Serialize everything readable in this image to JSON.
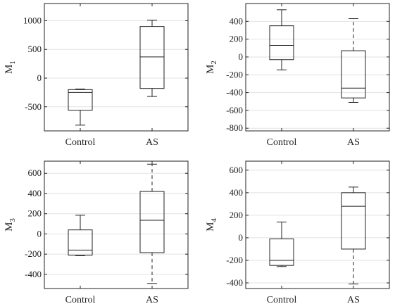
{
  "chart_data": [
    {
      "type": "boxplot",
      "ylabel_main": "M",
      "ylabel_sub": "1",
      "categories": [
        "Control",
        "AS"
      ],
      "ylim": [
        -920,
        1300
      ],
      "yticks": [
        -500,
        0,
        500,
        1000
      ],
      "ytick_labels": [
        "-500",
        "0",
        "500",
        "1000"
      ],
      "grid": true,
      "boxes": [
        {
          "category": "Control",
          "whisker_low": -820,
          "q1": -560,
          "median": -250,
          "q3": -200,
          "whisker_high": -190,
          "whisker_style_high": "solid",
          "whisker_style_low": "solid"
        },
        {
          "category": "AS",
          "whisker_low": -320,
          "q1": -180,
          "median": 370,
          "q3": 900,
          "whisker_high": 1010,
          "whisker_style_high": "solid",
          "whisker_style_low": "solid"
        }
      ]
    },
    {
      "type": "boxplot",
      "ylabel_main": "M",
      "ylabel_sub": "2",
      "categories": [
        "Control",
        "AS"
      ],
      "ylim": [
        -830,
        600
      ],
      "yticks": [
        -800,
        -600,
        -400,
        -200,
        0,
        200,
        400
      ],
      "ytick_labels": [
        "-800",
        "-600",
        "-400",
        "-200",
        "0",
        "200",
        "400"
      ],
      "grid": true,
      "boxes": [
        {
          "category": "Control",
          "whisker_low": -145,
          "q1": -30,
          "median": 130,
          "q3": 350,
          "whisker_high": 530,
          "whisker_style_high": "solid",
          "whisker_style_low": "solid"
        },
        {
          "category": "AS",
          "whisker_low": -510,
          "q1": -460,
          "median": -350,
          "q3": 70,
          "whisker_high": 430,
          "whisker_style_high": "dashed",
          "whisker_style_low": "solid"
        }
      ]
    },
    {
      "type": "boxplot",
      "ylabel_main": "M",
      "ylabel_sub": "3",
      "categories": [
        "Control",
        "AS"
      ],
      "ylim": [
        -540,
        720
      ],
      "yticks": [
        -400,
        -200,
        0,
        200,
        400,
        600
      ],
      "ytick_labels": [
        "-400",
        "-200",
        "0",
        "200",
        "400",
        "600"
      ],
      "grid": true,
      "boxes": [
        {
          "category": "Control",
          "whisker_low": -215,
          "q1": -210,
          "median": -160,
          "q3": 40,
          "whisker_high": 185,
          "whisker_style_high": "solid",
          "whisker_style_low": "solid"
        },
        {
          "category": "AS",
          "whisker_low": -490,
          "q1": -185,
          "median": 135,
          "q3": 420,
          "whisker_high": 690,
          "whisker_style_high": "dashed",
          "whisker_style_low": "dashed"
        }
      ]
    },
    {
      "type": "boxplot",
      "ylabel_main": "M",
      "ylabel_sub": "4",
      "categories": [
        "Control",
        "AS"
      ],
      "ylim": [
        -450,
        680
      ],
      "yticks": [
        -400,
        -200,
        0,
        200,
        400,
        600
      ],
      "ytick_labels": [
        "-400",
        "-200",
        "0",
        "200",
        "400",
        "600"
      ],
      "grid": true,
      "boxes": [
        {
          "category": "Control",
          "whisker_low": -255,
          "q1": -245,
          "median": -200,
          "q3": -10,
          "whisker_high": 140,
          "whisker_style_high": "solid",
          "whisker_style_low": "solid"
        },
        {
          "category": "AS",
          "whisker_low": -410,
          "q1": -100,
          "median": 280,
          "q3": 400,
          "whisker_high": 450,
          "whisker_style_high": "solid",
          "whisker_style_low": "dashed"
        }
      ]
    }
  ]
}
